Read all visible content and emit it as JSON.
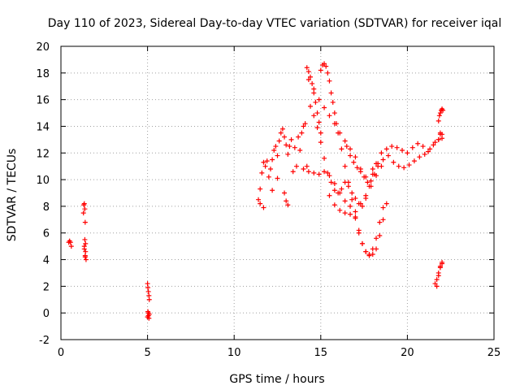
{
  "chart_data": {
    "type": "scatter",
    "title": "Day 110 of 2023, Sidereal Day-to-day VTEC variation (SDTVAR) for receiver iqal",
    "xlabel": "GPS time / hours",
    "ylabel": "SDTVAR / TECUs",
    "xlim": [
      0,
      25
    ],
    "ylim": [
      -2,
      20
    ],
    "xticks": [
      "0",
      "5",
      "10",
      "15",
      "20",
      "25"
    ],
    "yticks": [
      "-2",
      "0",
      "2",
      "4",
      "6",
      "8",
      "10",
      "12",
      "14",
      "16",
      "18",
      "20"
    ],
    "grid": true,
    "marker": "+",
    "series": [
      {
        "name": "iqal",
        "color": "#ff0000",
        "x": [
          0.45,
          0.5,
          0.55,
          0.6,
          1.3,
          1.32,
          1.35,
          1.38,
          1.4,
          1.42,
          1.45,
          1.35,
          1.38,
          1.4,
          1.42,
          1.35,
          1.4,
          5.0,
          5.02,
          5.05,
          5.08,
          5.1,
          5.02,
          5.05,
          5.08,
          5.0,
          5.05,
          5.1,
          11.4,
          11.5,
          11.6,
          11.7,
          11.8,
          11.9,
          12.0,
          12.1,
          12.2,
          12.3,
          12.4,
          12.5,
          12.6,
          12.7,
          12.8,
          12.9,
          13.0,
          13.1,
          13.2,
          13.3,
          13.5,
          13.7,
          13.9,
          14.0,
          14.1,
          11.5,
          11.7,
          12.2,
          12.5,
          12.9,
          13.0,
          13.1,
          13.4,
          13.6,
          13.8,
          14.2,
          14.2,
          14.3,
          14.4,
          14.5,
          14.6,
          14.7,
          14.8,
          14.9,
          15.0,
          14.3,
          14.6,
          14.9,
          15.2,
          15.5,
          15.8,
          16.1,
          16.4,
          16.7,
          17.0,
          17.3,
          17.6,
          14.4,
          14.6,
          14.8,
          15.0,
          15.2,
          15.4,
          15.6,
          15.8,
          16.0,
          16.2,
          16.4,
          16.6,
          16.8,
          17.0,
          17.2,
          17.4,
          17.6,
          17.8,
          18.0,
          18.2,
          14.0,
          14.3,
          14.6,
          14.9,
          15.2,
          15.5,
          15.8,
          16.1,
          16.4,
          16.7,
          17.0,
          17.3,
          17.6,
          17.9,
          18.2,
          18.5,
          15.0,
          15.1,
          15.2,
          15.3,
          15.4,
          15.5,
          15.6,
          15.7,
          15.8,
          15.9,
          16.0,
          16.2,
          16.4,
          16.6,
          16.8,
          17.0,
          17.2,
          17.4,
          17.6,
          17.8,
          18.0,
          18.2,
          18.4,
          18.6,
          15.5,
          15.8,
          16.1,
          16.4,
          16.7,
          17.0,
          17.2,
          17.4,
          17.6,
          17.8,
          18.0,
          18.2,
          18.4,
          18.6,
          18.8,
          16.5,
          16.7,
          16.9,
          17.1,
          17.3,
          17.5,
          17.7,
          17.9,
          18.1,
          18.3,
          18.5,
          18.8,
          19.1,
          19.4,
          19.7,
          20.0,
          20.3,
          20.6,
          20.9,
          21.2,
          21.5,
          21.8,
          22.0,
          18.0,
          18.3,
          18.6,
          18.9,
          19.2,
          19.5,
          19.8,
          20.1,
          20.4,
          20.7,
          21.0,
          21.3,
          21.6,
          21.9,
          21.8,
          21.85,
          21.9,
          21.95,
          22.0,
          22.05,
          21.8,
          21.9,
          22.0,
          21.6,
          21.7,
          21.8,
          21.9,
          22.0,
          21.7,
          21.8,
          21.9,
          22.0
        ],
        "y": [
          5.3,
          5.4,
          5.3,
          5.0,
          7.5,
          8.1,
          8.2,
          7.8,
          6.8,
          5.2,
          4.0,
          4.8,
          5.5,
          4.3,
          4.6,
          5.0,
          4.2,
          2.2,
          1.9,
          1.6,
          1.3,
          1.0,
          0.1,
          -0.2,
          -0.4,
          -0.3,
          0.0,
          -0.1,
          8.5,
          9.3,
          10.5,
          11.3,
          11.0,
          11.4,
          10.2,
          10.8,
          11.5,
          12.2,
          12.5,
          11.8,
          12.9,
          13.5,
          13.8,
          13.2,
          12.6,
          11.9,
          12.5,
          13.0,
          12.4,
          13.2,
          13.5,
          14.0,
          14.2,
          8.2,
          7.9,
          9.2,
          10.1,
          9.0,
          8.4,
          8.1,
          10.6,
          11.0,
          12.2,
          11.0,
          18.4,
          18.1,
          17.7,
          17.2,
          16.5,
          15.8,
          15.0,
          14.3,
          13.5,
          17.5,
          16.8,
          16.0,
          15.4,
          14.8,
          14.2,
          13.5,
          12.9,
          12.3,
          11.7,
          10.8,
          10.2,
          15.5,
          14.8,
          13.9,
          12.8,
          11.6,
          10.5,
          9.8,
          9.2,
          9.0,
          9.3,
          9.8,
          9.5,
          9.0,
          8.6,
          8.2,
          8.0,
          8.6,
          9.5,
          10.4,
          11.2,
          10.8,
          10.6,
          10.5,
          10.4,
          10.6,
          10.3,
          9.7,
          9.0,
          8.4,
          8.0,
          7.6,
          8.2,
          8.8,
          9.5,
          10.3,
          11.0,
          18.2,
          18.6,
          18.7,
          18.5,
          18.0,
          17.4,
          16.5,
          15.8,
          15.0,
          14.2,
          13.5,
          12.3,
          11.0,
          9.8,
          8.5,
          7.2,
          6.0,
          5.2,
          4.6,
          4.4,
          4.8,
          5.6,
          6.8,
          7.9,
          8.8,
          8.1,
          7.7,
          7.5,
          7.4,
          7.1,
          6.2,
          5.2,
          4.6,
          4.3,
          4.4,
          4.8,
          5.8,
          7.0,
          8.2,
          12.5,
          11.8,
          11.3,
          10.9,
          10.6,
          10.2,
          9.8,
          9.9,
          10.4,
          11.0,
          12.0,
          12.3,
          12.5,
          12.4,
          12.2,
          12.0,
          12.4,
          12.7,
          12.5,
          12.1,
          12.6,
          13.0,
          13.4,
          10.8,
          11.2,
          11.5,
          11.8,
          11.3,
          11.0,
          10.9,
          11.1,
          11.4,
          11.7,
          11.9,
          12.3,
          12.8,
          13.5,
          14.4,
          14.8,
          15.0,
          15.2,
          15.3,
          15.2,
          13.0,
          13.4,
          13.1,
          2.2,
          2.5,
          3.0,
          3.4,
          3.7,
          2.0,
          2.8,
          3.5,
          3.8
        ]
      }
    ]
  }
}
